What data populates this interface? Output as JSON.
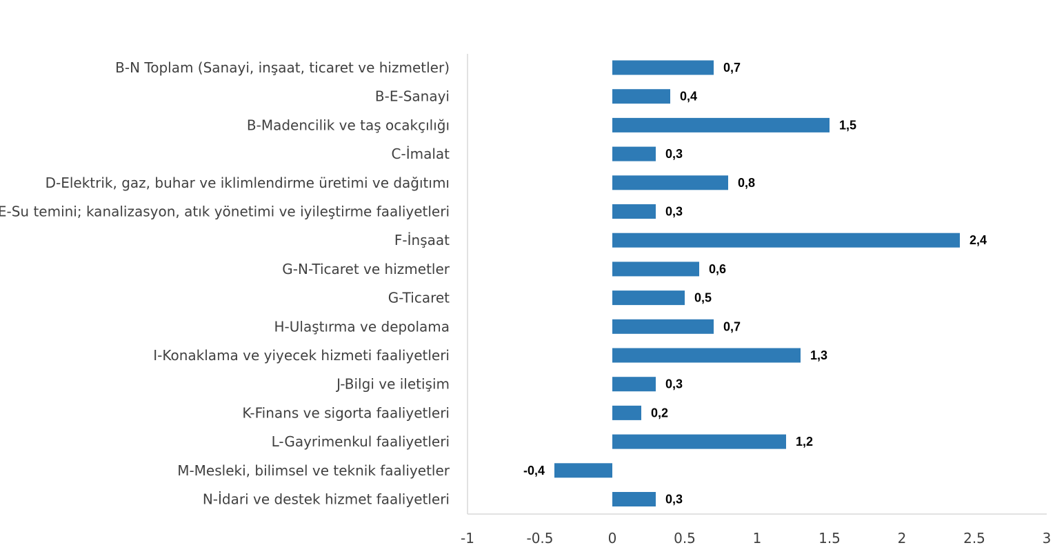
{
  "chart_data": {
    "type": "bar",
    "orientation": "horizontal",
    "categories": [
      "B-N Toplam (Sanayi, inşaat, ticaret ve hizmetler)",
      "B-E-Sanayi",
      "B-Madencilik ve taş ocakçılığı",
      "C-İmalat",
      "D-Elektrik, gaz, buhar ve iklimlendirme üretimi ve dağıtımı",
      "E-Su temini; kanalizasyon, atık yönetimi ve iyileştirme faaliyetleri",
      "F-İnşaat",
      "G-N-Ticaret ve hizmetler",
      "G-Ticaret",
      "H-Ulaştırma ve depolama",
      "I-Konaklama ve yiyecek hizmeti faaliyetleri",
      "J-Bilgi ve iletişim",
      "K-Finans ve sigorta faaliyetleri",
      "L-Gayrimenkul faaliyetleri",
      "M-Mesleki, bilimsel ve teknik faaliyetler",
      "N-İdari ve destek hizmet faaliyetleri"
    ],
    "values": [
      0.7,
      0.4,
      1.5,
      0.3,
      0.8,
      0.3,
      2.4,
      0.6,
      0.5,
      0.7,
      1.3,
      0.3,
      0.2,
      1.2,
      -0.4,
      0.3
    ],
    "value_labels": [
      "0,7",
      "0,4",
      "1,5",
      "0,3",
      "0,8",
      "0,3",
      "2,4",
      "0,6",
      "0,5",
      "0,7",
      "1,3",
      "0,3",
      "0,2",
      "1,2",
      "-0,4",
      "0,3"
    ],
    "xlim": [
      -1,
      3
    ],
    "xticks": [
      -1,
      -0.5,
      0,
      0.5,
      1,
      1.5,
      2,
      2.5,
      3
    ],
    "xtick_labels": [
      "-1",
      "-0.5",
      "0",
      "0.5",
      "1",
      "1.5",
      "2",
      "2.5",
      "3"
    ],
    "bar_color": "#2e7bb6",
    "axis_color": "#d9d9d9",
    "grid": false,
    "legend": "none"
  }
}
